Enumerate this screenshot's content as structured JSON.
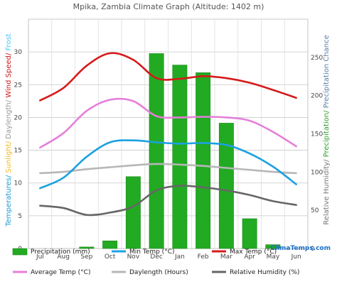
{
  "chart_data": {
    "type": "bar",
    "title": "Mpika, Zambia Climate Graph (Altitude: 1402 m)",
    "categories": [
      "Jul",
      "Aug",
      "Sep",
      "Oct",
      "Nov",
      "Dec",
      "Jan",
      "Feb",
      "Mar",
      "Apr",
      "May",
      "Jun"
    ],
    "left_axis": {
      "label_parts": [
        {
          "text": "Temperatures/ ",
          "color": "#1a9ad6"
        },
        {
          "text": "Sunlight/ ",
          "color": "#f2b81a"
        },
        {
          "text": "Daylength/ ",
          "color": "#999999"
        },
        {
          "text": "Wind Speed/ ",
          "color": "#cc1a1a"
        },
        {
          "text": "Frost",
          "color": "#4fc3f7"
        }
      ],
      "ylim": [
        0,
        35
      ],
      "ticks": [
        0,
        5,
        10,
        15,
        20,
        25,
        30
      ]
    },
    "right_axis": {
      "label_parts": [
        {
          "text": "Relative Humidity/ ",
          "color": "#777777"
        },
        {
          "text": "Precipitation/ ",
          "color": "#2e9e2e"
        },
        {
          "text": "Precipitation Chance",
          "color": "#5b7fa6"
        }
      ],
      "ylim": [
        0,
        300
      ],
      "ticks": [
        0,
        50,
        100,
        150,
        200,
        250
      ]
    },
    "series": [
      {
        "name": "Precipitation (mm)",
        "kind": "bar",
        "axis": "right",
        "color": "#22aa22",
        "values": [
          0,
          0,
          2,
          10,
          94,
          255,
          240,
          230,
          164,
          39,
          5,
          0
        ]
      },
      {
        "name": "Min Temp (°C)",
        "kind": "line",
        "axis": "left",
        "color": "#1ba1e2",
        "values": [
          9.2,
          10.8,
          14.0,
          16.2,
          16.5,
          16.2,
          16.0,
          16.1,
          15.8,
          14.5,
          12.5,
          9.8
        ]
      },
      {
        "name": "Max Temp (°C)",
        "kind": "line",
        "axis": "left",
        "color": "#d61a1a",
        "values": [
          22.6,
          24.5,
          27.9,
          29.8,
          28.8,
          26.0,
          25.9,
          26.3,
          26.0,
          25.3,
          24.2,
          23.0
        ]
      },
      {
        "name": "Average Temp (°C)",
        "kind": "line",
        "axis": "left",
        "color": "#e57fd9",
        "values": [
          15.4,
          17.6,
          21.0,
          22.7,
          22.5,
          20.2,
          20.0,
          20.1,
          20.0,
          19.5,
          17.8,
          15.6
        ]
      },
      {
        "name": "Daylength (Hours)",
        "kind": "line",
        "axis": "left",
        "color": "#b7b7b7",
        "values": [
          11.5,
          11.7,
          12.1,
          12.4,
          12.7,
          12.9,
          12.8,
          12.6,
          12.3,
          12.0,
          11.7,
          11.5
        ]
      },
      {
        "name": "Relative Humidity (%)",
        "kind": "line",
        "axis": "right",
        "color": "#666666",
        "values": [
          56,
          53,
          44,
          47,
          55,
          76,
          82,
          80,
          76,
          70,
          62,
          57
        ]
      }
    ],
    "grid": true,
    "legend_position": "bottom"
  },
  "watermark": "ClimaTemps.com"
}
